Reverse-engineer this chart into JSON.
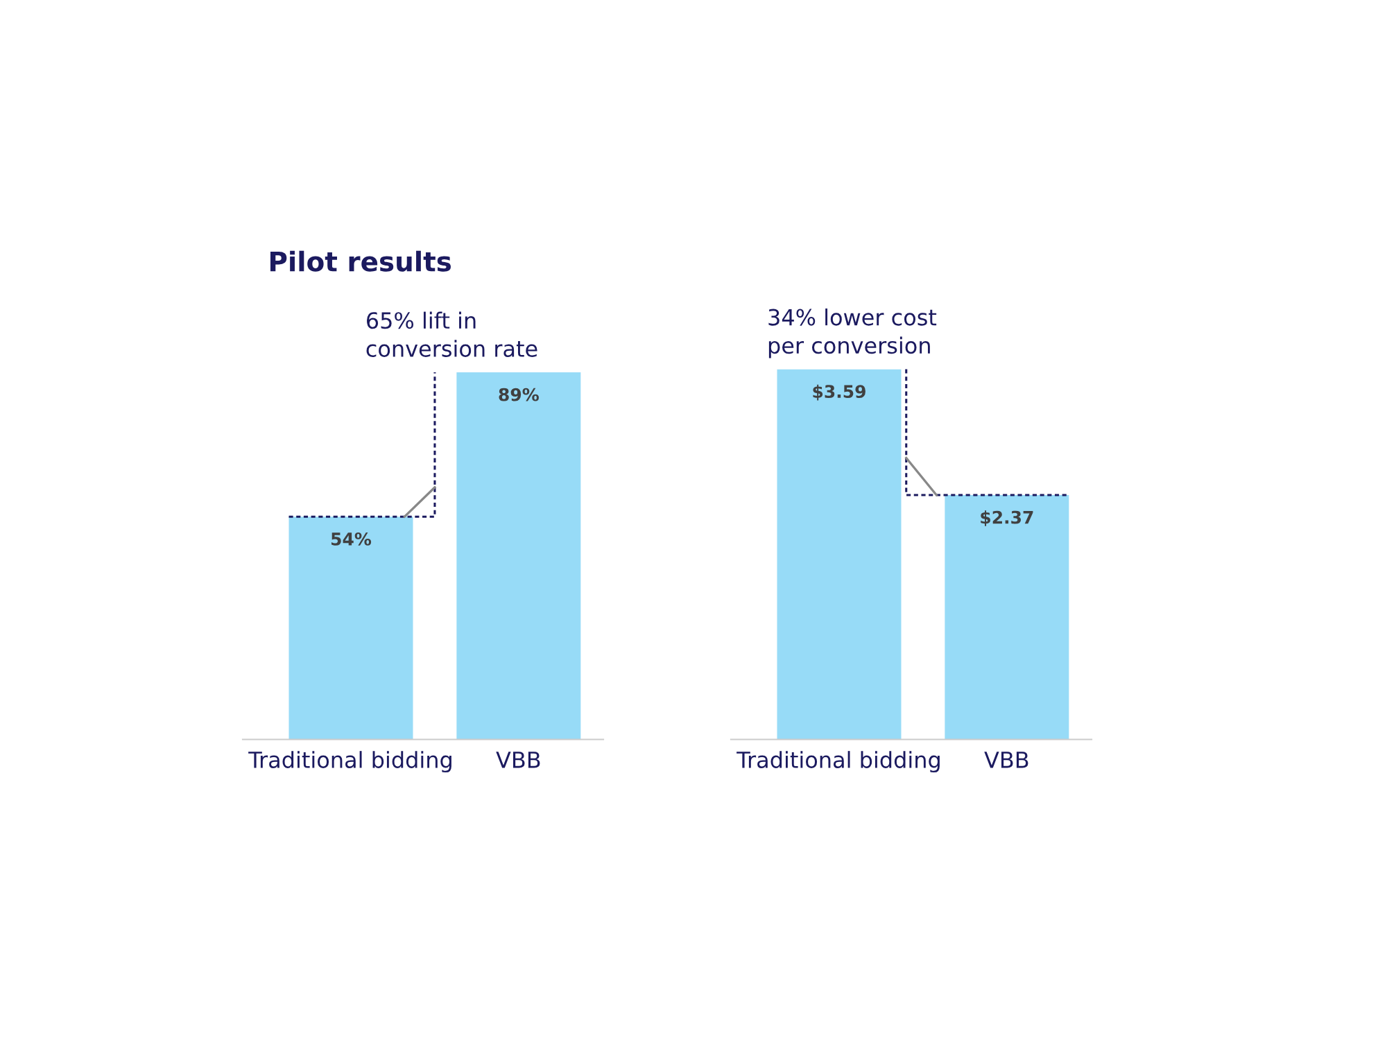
{
  "chart_data": [
    {
      "type": "bar",
      "title": "Pilot results",
      "categories": [
        "Traditional bidding",
        "VBB"
      ],
      "values": [
        54,
        89
      ],
      "value_labels": [
        "54%",
        "89%"
      ],
      "color": "#97dbf7",
      "annotations": [
        "65% lift in\nconversion rate"
      ]
    },
    {
      "type": "bar",
      "categories": [
        "Traditional bidding",
        "VBB"
      ],
      "values": [
        3.59,
        2.37
      ],
      "value_labels": [
        "$3.59",
        "$2.37"
      ],
      "color": "#97dbf7",
      "annotations": [
        "34% lower cost\nper conversion"
      ]
    }
  ]
}
